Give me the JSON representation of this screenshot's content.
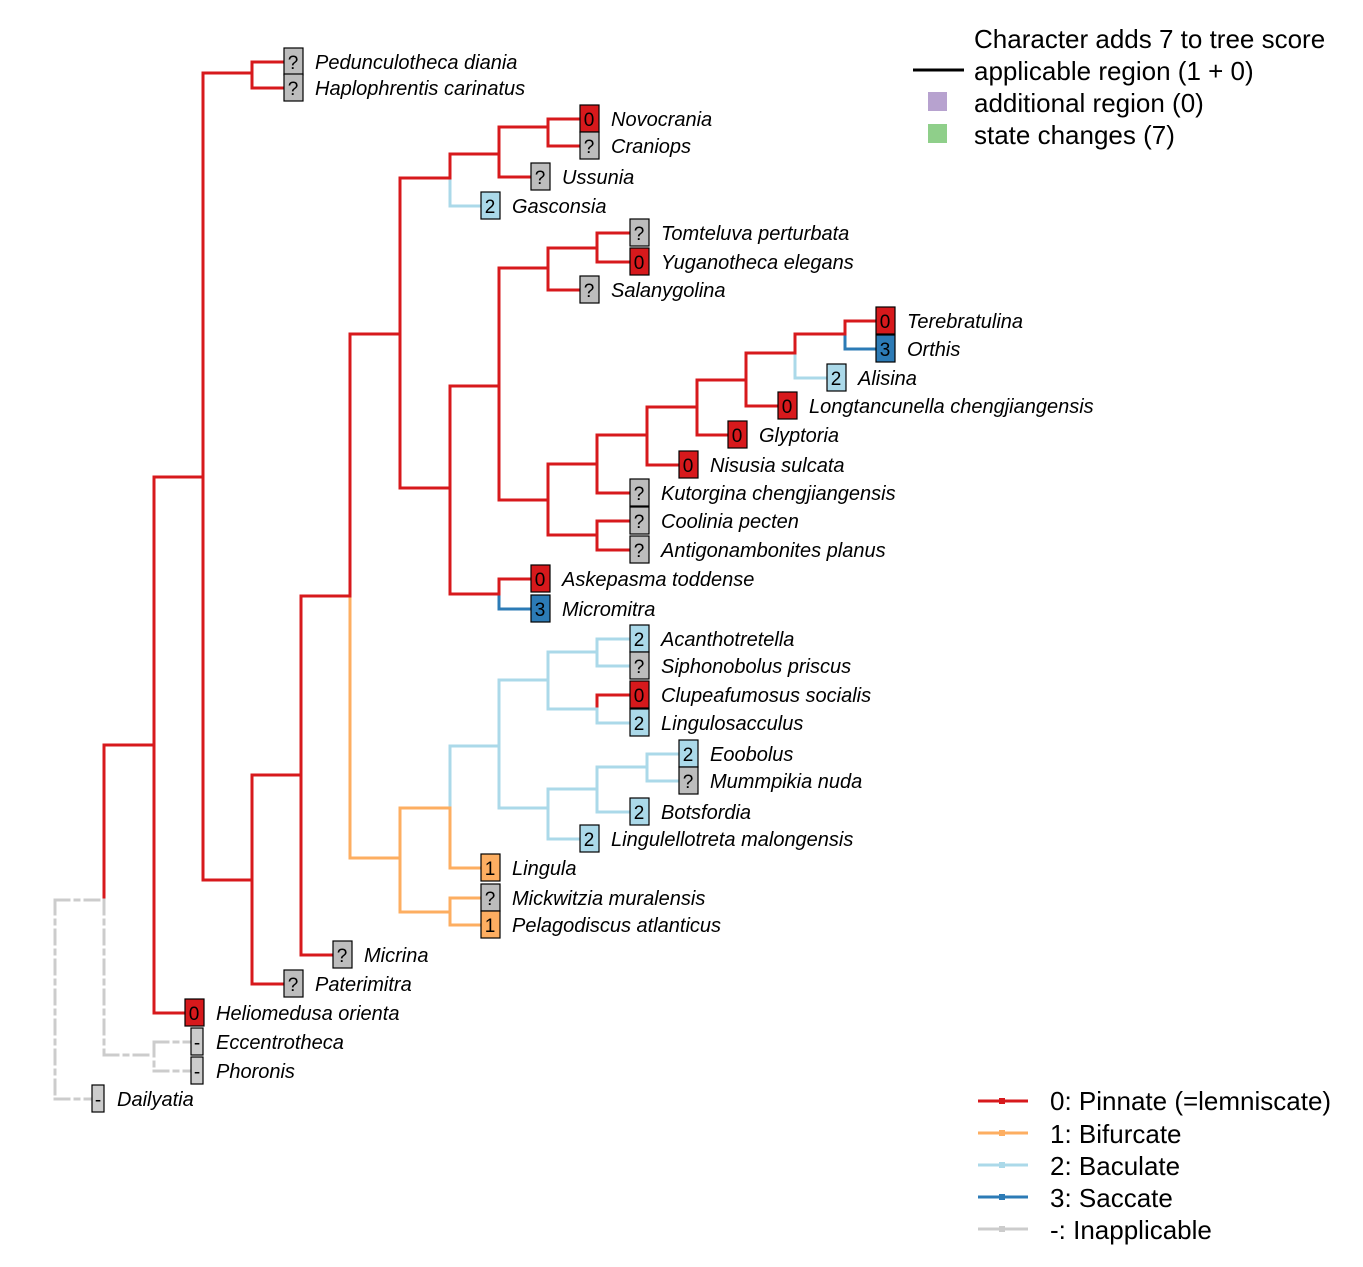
{
  "legend_top": {
    "heading": "Character adds 7 to tree score",
    "items": [
      {
        "label": "applicable region (1 + 0)",
        "symbol": "line",
        "color": "#000000"
      },
      {
        "label": "additional region (0)",
        "symbol": "square",
        "color": "#b7a2cf"
      },
      {
        "label": "state changes (7)",
        "symbol": "square",
        "color": "#8fcf8a"
      }
    ]
  },
  "legend_states": [
    {
      "label": "0: Pinnate (=lemniscate)",
      "color": "#d7191c"
    },
    {
      "label": "1: Bifurcate",
      "color": "#fdae61"
    },
    {
      "label": "2: Baculate",
      "color": "#abd9e9"
    },
    {
      "label": "3: Saccate",
      "color": "#2c7bb6"
    },
    {
      "label": "-: Inapplicable",
      "color": "#cccccc"
    }
  ],
  "state_colors": {
    "0": "#d7191c",
    "1": "#fdae61",
    "2": "#abd9e9",
    "3": "#2c7bb6",
    "-": "#cccccc",
    "?": "#bdbdbd"
  },
  "tips": [
    {
      "name": "Pedunculotheca diania",
      "state": "?"
    },
    {
      "name": "Haplophrentis carinatus",
      "state": "?"
    },
    {
      "name": "Novocrania",
      "state": "0"
    },
    {
      "name": "Craniops",
      "state": "?"
    },
    {
      "name": "Ussunia",
      "state": "?"
    },
    {
      "name": "Gasconsia",
      "state": "2"
    },
    {
      "name": "Tomteluva perturbata",
      "state": "?"
    },
    {
      "name": "Yuganotheca elegans",
      "state": "0"
    },
    {
      "name": "Salanygolina",
      "state": "?"
    },
    {
      "name": "Terebratulina",
      "state": "0"
    },
    {
      "name": "Orthis",
      "state": "3"
    },
    {
      "name": "Alisina",
      "state": "2"
    },
    {
      "name": "Longtancunella chengjiangensis",
      "state": "0"
    },
    {
      "name": "Glyptoria",
      "state": "0"
    },
    {
      "name": "Nisusia sulcata",
      "state": "0"
    },
    {
      "name": "Kutorgina chengjiangensis",
      "state": "?"
    },
    {
      "name": "Coolinia pecten",
      "state": "?"
    },
    {
      "name": "Antigonambonites planus",
      "state": "?"
    },
    {
      "name": "Askepasma toddense",
      "state": "0"
    },
    {
      "name": "Micromitra",
      "state": "3"
    },
    {
      "name": "Acanthotretella",
      "state": "2"
    },
    {
      "name": "Siphonobolus priscus",
      "state": "?"
    },
    {
      "name": "Clupeafumosus socialis",
      "state": "0"
    },
    {
      "name": "Lingulosacculus",
      "state": "2"
    },
    {
      "name": "Eoobolus",
      "state": "2"
    },
    {
      "name": "Mummpikia nuda",
      "state": "?"
    },
    {
      "name": "Botsfordia",
      "state": "2"
    },
    {
      "name": "Lingulellotreta malongensis",
      "state": "2"
    },
    {
      "name": "Lingula",
      "state": "1"
    },
    {
      "name": "Mickwitzia muralensis",
      "state": "?"
    },
    {
      "name": "Pelagodiscus atlanticus",
      "state": "1"
    },
    {
      "name": "Micrina",
      "state": "?"
    },
    {
      "name": "Paterimitra",
      "state": "?"
    },
    {
      "name": "Heliomedusa orienta",
      "state": "0"
    },
    {
      "name": "Eccentrotheca",
      "state": "-"
    },
    {
      "name": "Phoronis",
      "state": "-"
    },
    {
      "name": "Dailyatia",
      "state": "-"
    }
  ]
}
